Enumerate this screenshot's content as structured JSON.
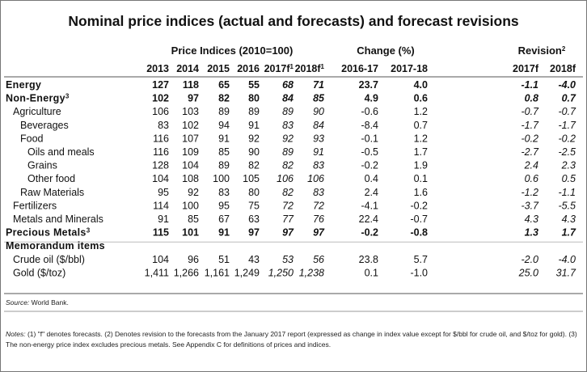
{
  "title": "Nominal price indices (actual and forecasts) and forecast revisions",
  "groups": [
    {
      "title": "Price Indices (2010=100)",
      "columns": [
        {
          "label": "2013"
        },
        {
          "label": "2014"
        },
        {
          "label": "2015"
        },
        {
          "label": "2016"
        },
        {
          "label": "2017f",
          "sup": "1"
        },
        {
          "label": "2018f",
          "sup": "1"
        }
      ]
    },
    {
      "title": "Change (%)",
      "columns": [
        {
          "label": "2016-17"
        },
        {
          "label": "2017-18"
        }
      ]
    },
    {
      "title": "Revision",
      "sup": "2",
      "columns": [
        {
          "label": "2017f"
        },
        {
          "label": "2018f"
        }
      ]
    }
  ],
  "italic_columns": [
    4,
    5,
    8,
    9
  ],
  "rows": [
    {
      "label": "Energy",
      "level": 0,
      "values": [
        "127",
        "118",
        "65",
        "55",
        "68",
        "71",
        "23.7",
        "4.0",
        "-1.1",
        "-4.0"
      ]
    },
    {
      "label": "Non-Energy",
      "sup": "3",
      "level": 0,
      "values": [
        "102",
        "97",
        "82",
        "80",
        "84",
        "85",
        "4.9",
        "0.6",
        "0.8",
        "0.7"
      ]
    },
    {
      "label": "Agriculture",
      "level": 1,
      "values": [
        "106",
        "103",
        "89",
        "89",
        "89",
        "90",
        "-0.6",
        "1.2",
        "-0.7",
        "-0.7"
      ]
    },
    {
      "label": "Beverages",
      "level": 2,
      "values": [
        "83",
        "102",
        "94",
        "91",
        "83",
        "84",
        "-8.4",
        "0.7",
        "-1.7",
        "-1.7"
      ]
    },
    {
      "label": "Food",
      "level": 2,
      "values": [
        "116",
        "107",
        "91",
        "92",
        "92",
        "93",
        "-0.1",
        "1.2",
        "-0.2",
        "-0.2"
      ]
    },
    {
      "label": "Oils and meals",
      "level": 3,
      "values": [
        "116",
        "109",
        "85",
        "90",
        "89",
        "91",
        "-0.5",
        "1.7",
        "-2.7",
        "-2.5"
      ]
    },
    {
      "label": "Grains",
      "level": 3,
      "values": [
        "128",
        "104",
        "89",
        "82",
        "82",
        "83",
        "-0.2",
        "1.9",
        "2.4",
        "2.3"
      ]
    },
    {
      "label": "Other food",
      "level": 3,
      "values": [
        "104",
        "108",
        "100",
        "105",
        "106",
        "106",
        "0.4",
        "0.1",
        "0.6",
        "0.5"
      ]
    },
    {
      "label": "Raw Materials",
      "level": 2,
      "values": [
        "95",
        "92",
        "83",
        "80",
        "82",
        "83",
        "2.4",
        "1.6",
        "-1.2",
        "-1.1"
      ]
    },
    {
      "label": "Fertilizers",
      "level": 1,
      "values": [
        "114",
        "100",
        "95",
        "75",
        "72",
        "72",
        "-4.1",
        "-0.2",
        "-3.7",
        "-5.5"
      ]
    },
    {
      "label": "Metals and Minerals",
      "level": 1,
      "values": [
        "91",
        "85",
        "67",
        "63",
        "77",
        "76",
        "22.4",
        "-0.7",
        "4.3",
        "4.3"
      ]
    },
    {
      "label": "Precious Metals",
      "sup": "3",
      "level": 0,
      "values": [
        "115",
        "101",
        "91",
        "97",
        "97",
        "97",
        "-0.2",
        "-0.8",
        "1.3",
        "1.7"
      ]
    },
    {
      "label": "Memorandum items",
      "level": 0
    },
    {
      "label": "Crude oil ($/bbl)",
      "level": 1,
      "values": [
        "104",
        "96",
        "51",
        "43",
        "53",
        "56",
        "23.8",
        "5.7",
        "-2.0",
        "-4.0"
      ]
    },
    {
      "label": "Gold ($/toz)",
      "level": 1,
      "values": [
        "1,411",
        "1,266",
        "1,161",
        "1,249",
        "1,250",
        "1,238",
        "0.1",
        "-1.0",
        "25.0",
        "31.7"
      ]
    }
  ],
  "source": {
    "label": "Source:",
    "text": "World Bank."
  },
  "notes": {
    "label": "Notes:",
    "text": "(1) \"f\" denotes forecasts. (2) Denotes revision to the forecasts from the January 2017 report (expressed as change in index value except for $/bbl for crude oil, and $/toz for gold). (3) The non-energy price index excludes precious metals. See Appendix C for definitions of prices and indices."
  }
}
